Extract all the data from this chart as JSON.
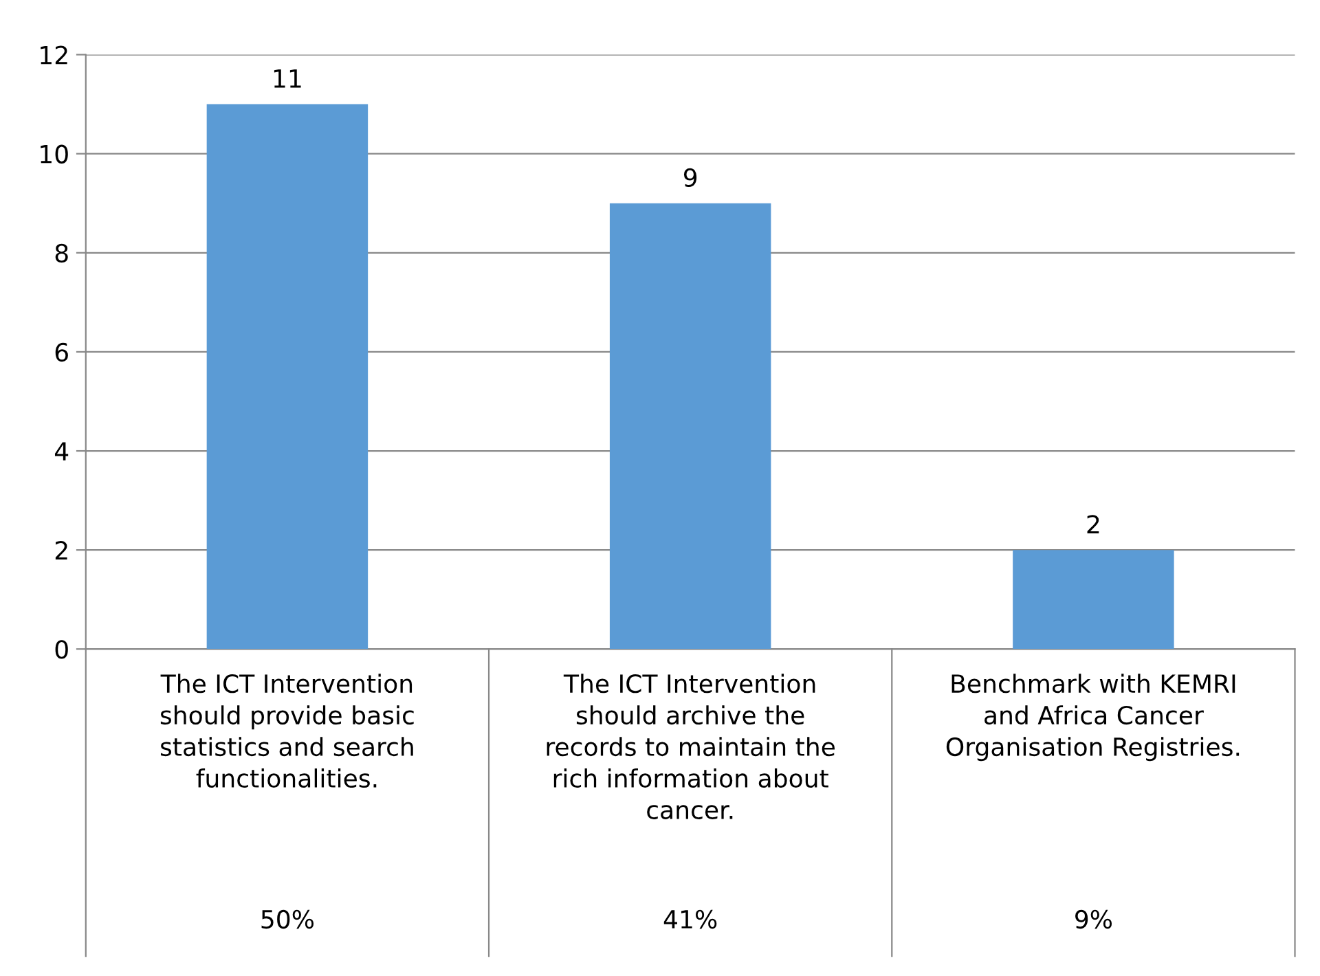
{
  "chart_data": {
    "type": "bar",
    "categories": [
      "The ICT Intervention\nshould provide basic\nstatistics and search\nfunctionalities.",
      "The ICT Intervention\nshould archive the\nrecords to maintain the\nrich information about\ncancer.",
      "Benchmark with KEMRI\nand Africa Cancer\nOrganisation Registries."
    ],
    "values": [
      11,
      9,
      2
    ],
    "color": "#5b9bd5",
    "ylim": [
      0,
      12
    ],
    "yticks": [
      0,
      2,
      4,
      6,
      8,
      10,
      12
    ],
    "grid": "y",
    "data_labels": true,
    "annotations": [
      "50%",
      "41%",
      "9%"
    ]
  }
}
